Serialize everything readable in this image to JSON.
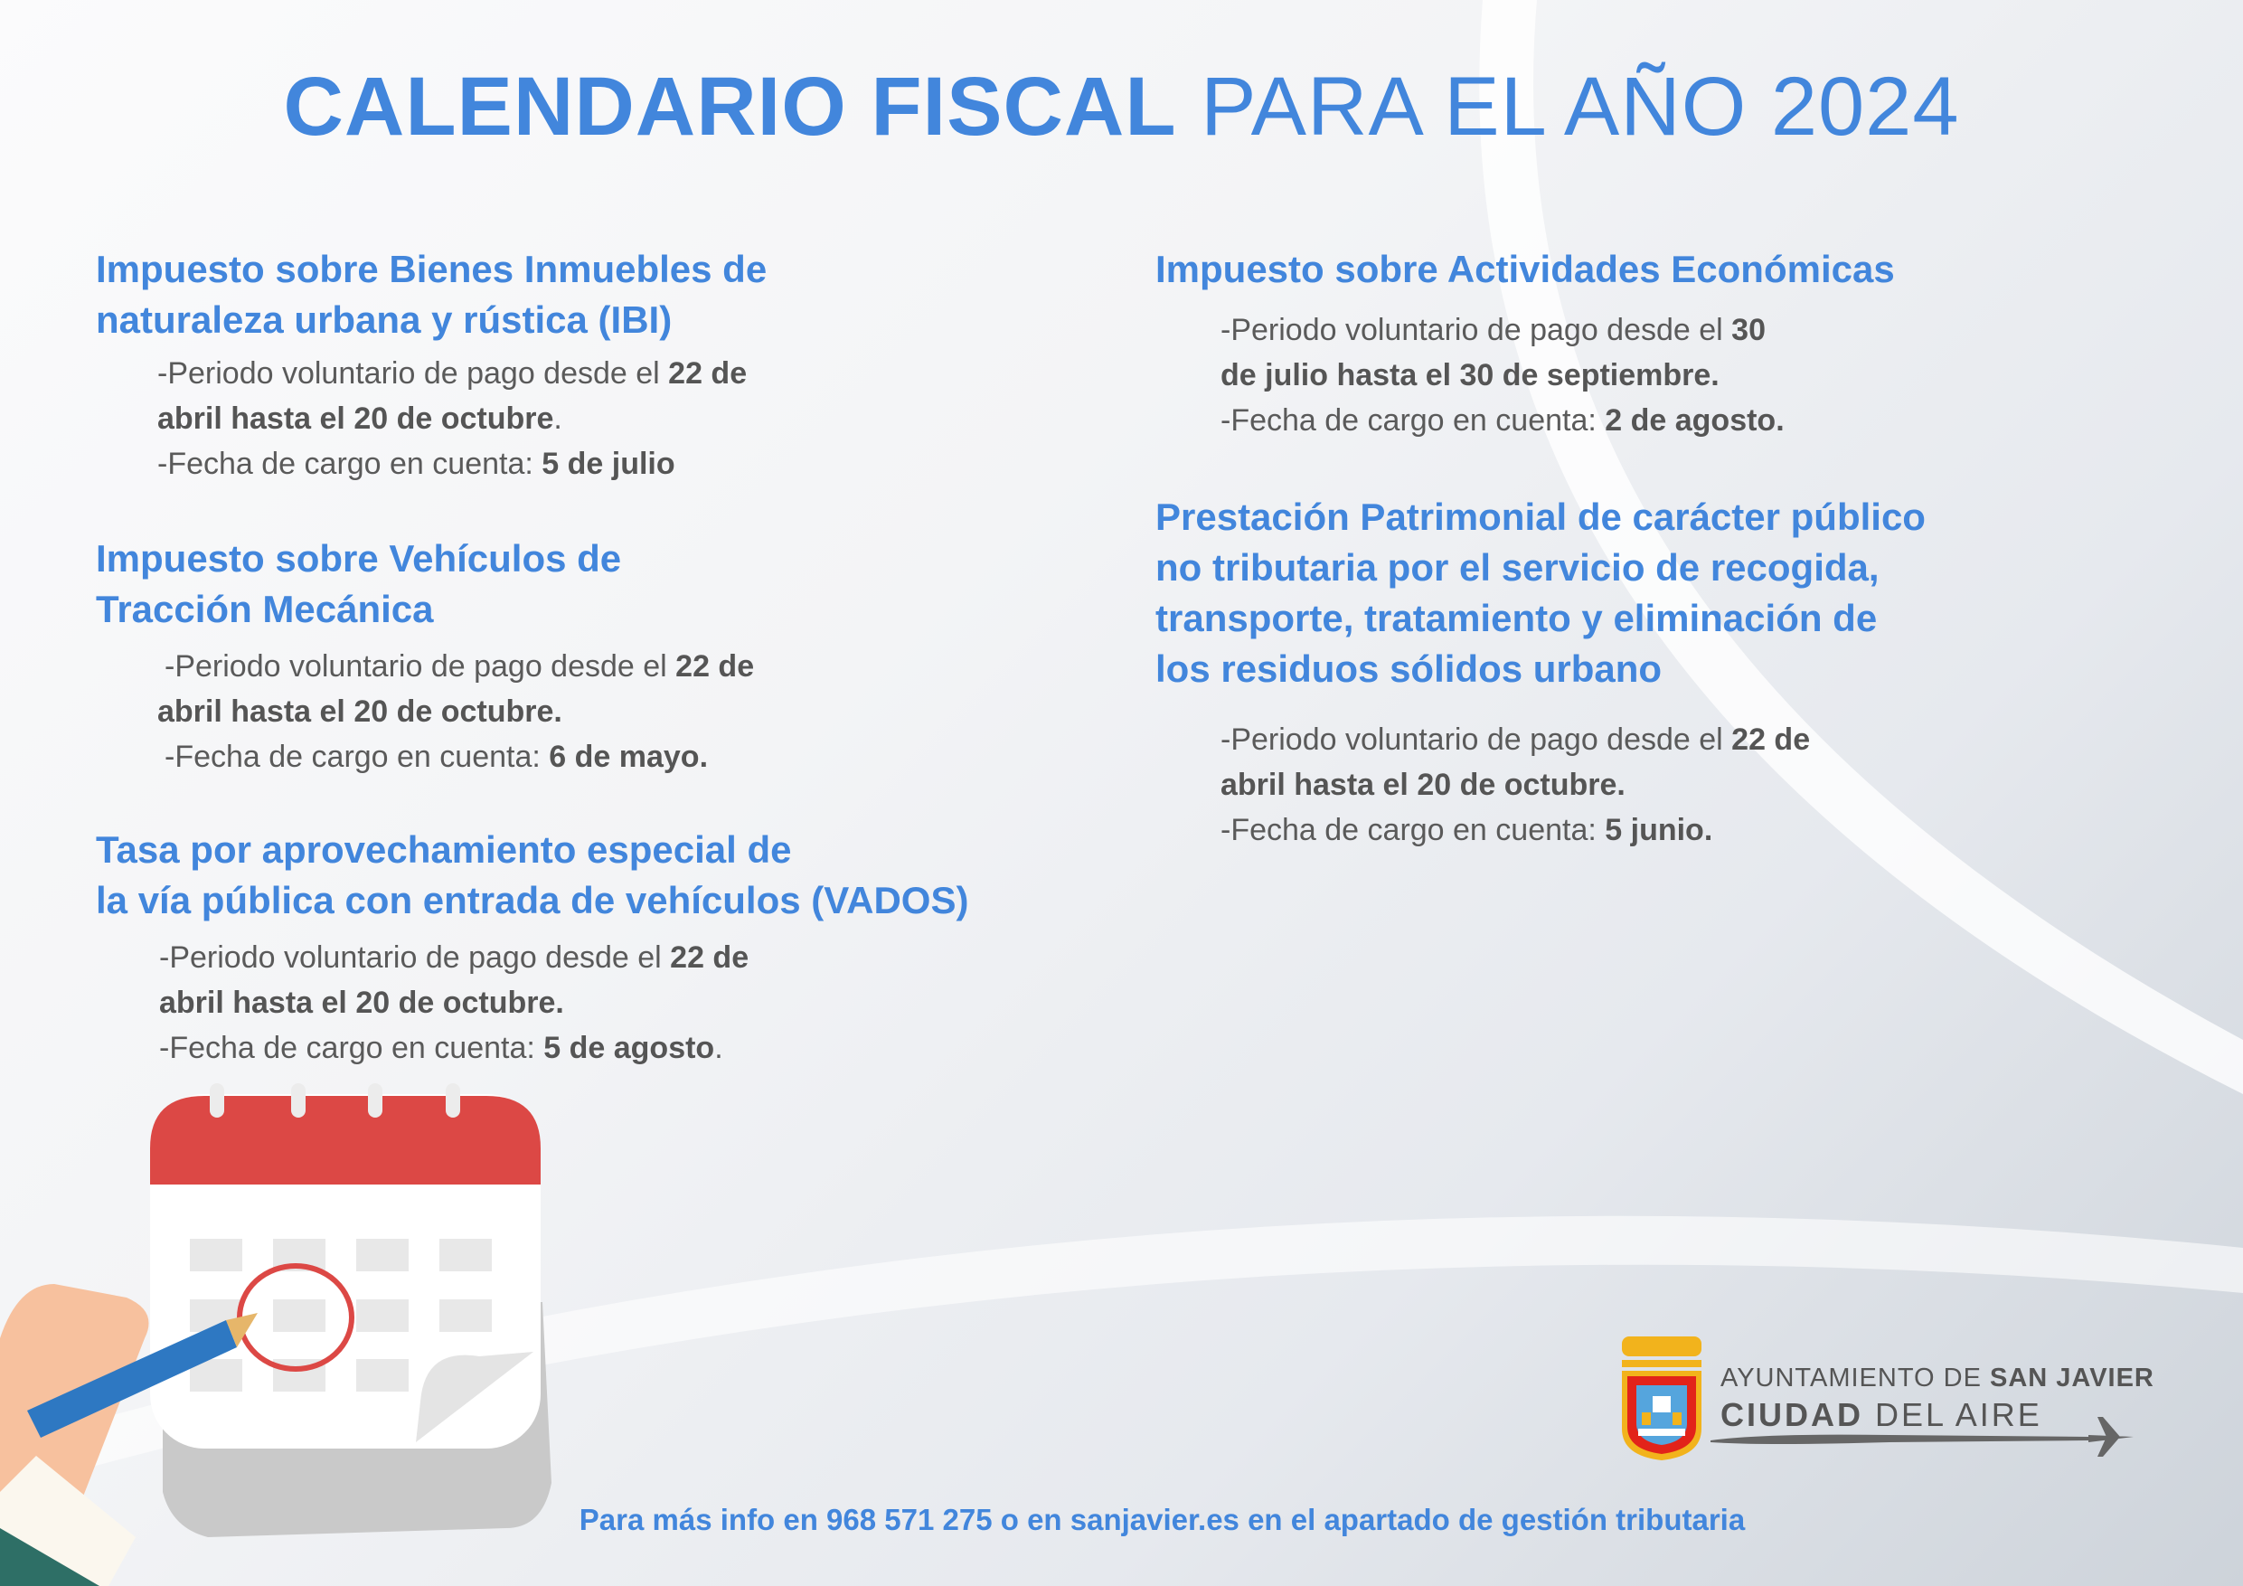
{
  "title": {
    "bold": "CALENDARIO FISCAL",
    "light": "PARA EL AÑO 2024"
  },
  "colors": {
    "accent": "#4286dc",
    "text": "#5a5a5a",
    "calendar_red": "#dc4845"
  },
  "sections": [
    {
      "heading": [
        "Impuesto sobre Bienes Inmuebles de",
        "naturaleza urbana y rústica (IBI)"
      ],
      "l1a": "-Periodo voluntario de pago desde el ",
      "l1b": "22 de",
      "l2a": "abril hasta el 20 de octubre",
      "l2b": ".",
      "l3a": "-Fecha de cargo en cuenta: ",
      "l3b": "5 de julio"
    },
    {
      "heading": [
        "Impuesto sobre Vehículos de",
        "Tracción Mecánica"
      ],
      "l1a": "-Periodo voluntario de pago desde el ",
      "l1b": "22 de",
      "l2a": "abril hasta el 20 de octubre.",
      "l3a": "-Fecha de cargo en cuenta: ",
      "l3b": "6 de mayo."
    },
    {
      "heading": [
        "Tasa por aprovechamiento especial de",
        "la vía pública con entrada de vehículos (VADOS)"
      ],
      "l1a": "-Periodo voluntario de pago desde el ",
      "l1b": "22 de",
      "l2a": "abril hasta el 20 de octubre.",
      "l3a": "-Fecha de cargo en cuenta: ",
      "l3b": "5 de agosto",
      "l3c": "."
    },
    {
      "heading": [
        "Impuesto sobre Actividades Económicas"
      ],
      "l1a": "-Periodo voluntario de pago desde el ",
      "l1b": "30",
      "l2a": "de julio hasta el 30 de septiembre.",
      "l3a": "-Fecha de cargo en cuenta: ",
      "l3b": "2 de agosto."
    },
    {
      "heading": [
        "Prestación Patrimonial de carácter público",
        "no tributaria por el servicio de recogida,",
        "transporte, tratamiento y eliminación de",
        "los residuos sólidos urbano"
      ],
      "l1a": "-Periodo voluntario de pago desde el ",
      "l1b": "22 de",
      "l2a": "abril hasta el 20 de octubre.",
      "l3a": "-Fecha de cargo en cuenta: ",
      "l3b": "5 junio."
    }
  ],
  "logo": {
    "line1_light": "AYUNTAMIENTO DE ",
    "line1_bold": "SAN JAVIER",
    "line2_bold": "CIUDAD",
    "line2_light": " DEL AIRE"
  },
  "footer": "Para más info en 968 571 275 o en sanjavier.es en el apartado de gestión tributaria"
}
